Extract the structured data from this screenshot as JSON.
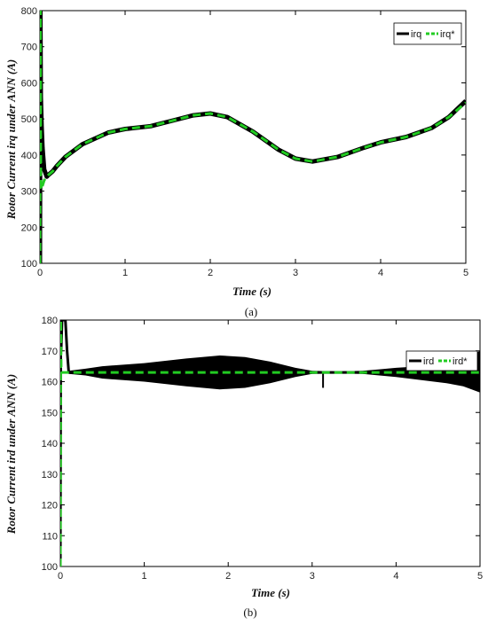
{
  "chart_data": [
    {
      "type": "line",
      "panel_label": "(a)",
      "xlabel": "Time (s)",
      "ylabel": "Rotor Current irq under ANN (A)",
      "xlim": [
        0,
        5
      ],
      "ylim": [
        100,
        800
      ],
      "x_ticks": [
        0,
        1,
        2,
        3,
        4,
        5
      ],
      "y_ticks": [
        100,
        200,
        300,
        400,
        500,
        600,
        700,
        800
      ],
      "grid": false,
      "legend_position": "top-right",
      "series": [
        {
          "name": "irq",
          "color": "#000000",
          "style": "solid",
          "x": [
            0,
            0.005,
            0.01,
            0.02,
            0.03,
            0.05,
            0.08,
            0.1,
            0.15,
            0.2,
            0.3,
            0.5,
            0.8,
            1.0,
            1.3,
            1.6,
            1.8,
            2.0,
            2.2,
            2.5,
            2.8,
            3.0,
            3.2,
            3.5,
            3.8,
            4.0,
            4.3,
            4.6,
            4.8,
            5.0
          ],
          "y": [
            100,
            800,
            560,
            480,
            420,
            360,
            340,
            345,
            355,
            370,
            395,
            430,
            462,
            472,
            480,
            498,
            510,
            515,
            505,
            465,
            415,
            390,
            382,
            395,
            420,
            435,
            450,
            475,
            505,
            550
          ]
        },
        {
          "name": "irq*",
          "color": "#22cc22",
          "style": "dashed",
          "x": [
            0,
            0.005,
            0.01,
            0.02,
            0.03,
            0.05,
            0.08,
            0.1,
            0.15,
            0.2,
            0.3,
            0.5,
            0.8,
            1.0,
            1.3,
            1.6,
            1.8,
            2.0,
            2.2,
            2.5,
            2.8,
            3.0,
            3.2,
            3.5,
            3.8,
            4.0,
            4.3,
            4.6,
            4.8,
            5.0
          ],
          "y": [
            100,
            800,
            320,
            305,
            315,
            330,
            340,
            345,
            355,
            370,
            395,
            430,
            462,
            472,
            480,
            498,
            510,
            515,
            505,
            465,
            415,
            390,
            382,
            395,
            420,
            435,
            450,
            475,
            505,
            545
          ]
        }
      ]
    },
    {
      "type": "line",
      "panel_label": "(b)",
      "xlabel": "Time (s)",
      "ylabel": "Rotor Current ird under ANN (A)",
      "xlim": [
        0,
        5
      ],
      "ylim": [
        100,
        180
      ],
      "x_ticks": [
        0,
        1,
        2,
        3,
        4,
        5
      ],
      "y_ticks": [
        100,
        110,
        120,
        130,
        140,
        150,
        160,
        170,
        180
      ],
      "grid": false,
      "legend_position": "top-right",
      "band": {
        "x": [
          0.1,
          0.3,
          0.5,
          1.0,
          1.5,
          1.9,
          2.2,
          2.5,
          2.8,
          3.0,
          3.3,
          3.6,
          3.8,
          4.0,
          4.3,
          4.6,
          4.8,
          5.0
        ],
        "upper": [
          163.5,
          164.2,
          165,
          166,
          167.5,
          168.5,
          168,
          166.5,
          164.5,
          163.5,
          163.3,
          163.5,
          164,
          164.5,
          165,
          166,
          167.5,
          170
        ],
        "lower": [
          162.5,
          162,
          161,
          160,
          158.5,
          157.5,
          158,
          159.5,
          161.5,
          162.5,
          162.7,
          162.5,
          162,
          161.5,
          160.5,
          159.5,
          158.5,
          156.5
        ]
      },
      "series": [
        {
          "name": "ird",
          "color": "#000000",
          "style": "solid",
          "x": [
            0,
            0.005,
            0.01,
            0.02,
            0.04,
            0.06,
            0.08,
            0.1,
            0.2,
            5.0
          ],
          "y": [
            100,
            180,
            170,
            180,
            180,
            180,
            170,
            163,
            163,
            163
          ]
        },
        {
          "name": "ird*",
          "color": "#22cc22",
          "style": "dashed",
          "x": [
            0,
            0.005,
            0.01,
            0.02,
            0.05,
            0.1,
            5.0
          ],
          "y": [
            100,
            180,
            165,
            163,
            163,
            163,
            163
          ]
        }
      ]
    }
  ]
}
